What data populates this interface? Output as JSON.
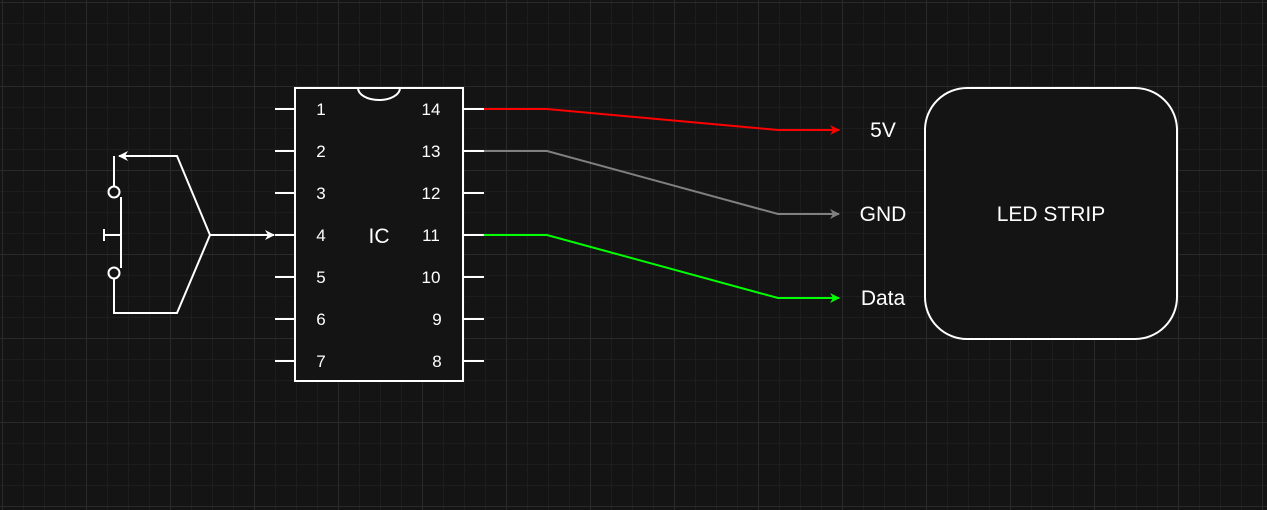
{
  "ic": {
    "label": "IC",
    "left_pins": [
      "1",
      "2",
      "3",
      "4",
      "5",
      "6",
      "7"
    ],
    "right_pins": [
      "14",
      "13",
      "12",
      "11",
      "10",
      "9",
      "8"
    ]
  },
  "led_strip": {
    "label": "LED STRIP"
  },
  "connections": [
    {
      "from_pin": "14",
      "to": "5V",
      "label": "5V",
      "color": "#ff0000"
    },
    {
      "from_pin": "13",
      "to": "GND",
      "label": "GND",
      "color": "#808080"
    },
    {
      "from_pin": "11",
      "to": "Data",
      "label": "Data",
      "color": "#00ff00"
    }
  ],
  "button": {
    "connects_to_pin": "4",
    "color": "#ffffff"
  },
  "colors": {
    "background": "#141414",
    "stroke": "#ffffff",
    "power": "#ff0000",
    "ground": "#808080",
    "data": "#00ff00"
  }
}
